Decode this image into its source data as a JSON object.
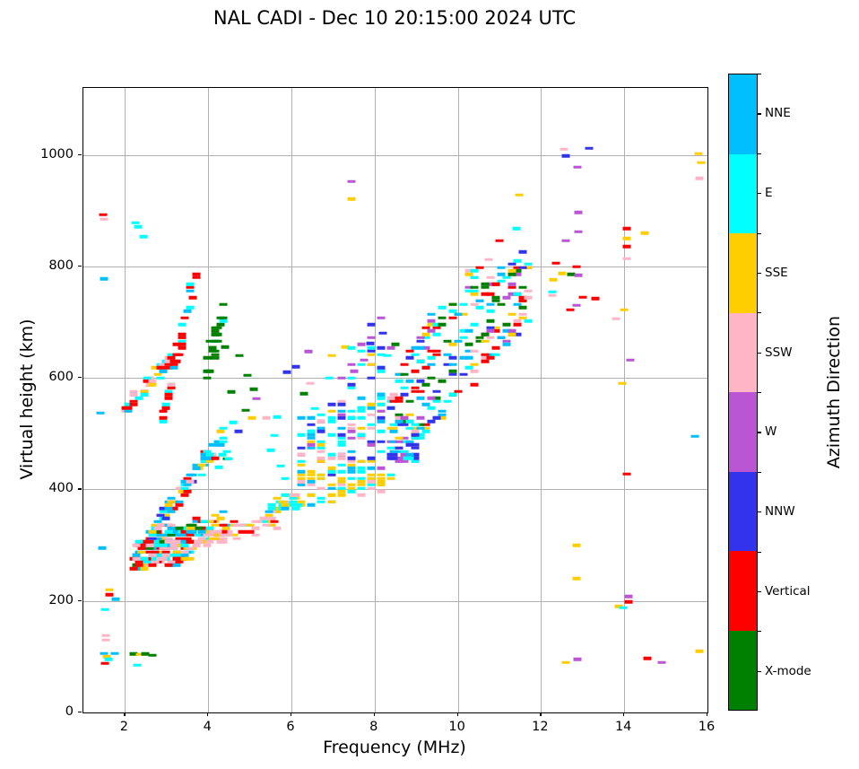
{
  "chart_data": {
    "type": "scatter",
    "title": "NAL CADI - Dec 10 20:15:00 2024 UTC",
    "xlabel": "Frequency (MHz)",
    "ylabel": "Virtual height (km)",
    "xlim": [
      1,
      16
    ],
    "ylim": [
      0,
      1120
    ],
    "x_ticks": [
      2,
      4,
      6,
      8,
      10,
      12,
      14,
      16
    ],
    "y_ticks": [
      0,
      200,
      400,
      600,
      800,
      1000
    ],
    "grid": true,
    "colorbar": {
      "label": "Azimuth Direction",
      "categories": [
        "NNE",
        "E",
        "SSE",
        "SSW",
        "W",
        "NNW",
        "Vertical",
        "X-mode"
      ],
      "colors": [
        "#00BFFF",
        "#00FFFF",
        "#FFCE00",
        "#FFB5C5",
        "#BA55D3",
        "#3333EE",
        "#FF0000",
        "#008000"
      ]
    },
    "points": [
      [
        1.48,
        893,
        6
      ],
      [
        1.5,
        885,
        3
      ],
      [
        1.49,
        778,
        0
      ],
      [
        1.42,
        537,
        0
      ],
      [
        1.45,
        295,
        0
      ],
      [
        2.26,
        878,
        1
      ],
      [
        2.32,
        871,
        1
      ],
      [
        2.44,
        853,
        1
      ],
      [
        1.62,
        220,
        2
      ],
      [
        1.62,
        211,
        6
      ],
      [
        1.78,
        203,
        0
      ],
      [
        1.52,
        185,
        1
      ],
      [
        1.53,
        138,
        3
      ],
      [
        1.53,
        130,
        3
      ],
      [
        1.5,
        106,
        0
      ],
      [
        1.56,
        100,
        2
      ],
      [
        1.6,
        95,
        1
      ],
      [
        1.52,
        88,
        6
      ],
      [
        1.75,
        106,
        0
      ],
      [
        2.2,
        105,
        7
      ],
      [
        2.35,
        104,
        2
      ],
      [
        2.48,
        105,
        7
      ],
      [
        2.65,
        103,
        7
      ],
      [
        2.29,
        85,
        1
      ],
      [
        4.45,
        455,
        7
      ],
      [
        4.3,
        480,
        4
      ],
      [
        4.73,
        504,
        5
      ],
      [
        4.9,
        542,
        7
      ],
      [
        5.05,
        528,
        2
      ],
      [
        5.4,
        528,
        3
      ],
      [
        5.15,
        563,
        4
      ],
      [
        4.4,
        655,
        7
      ],
      [
        4.75,
        640,
        7
      ],
      [
        4.95,
        605,
        7
      ],
      [
        5.1,
        580,
        7
      ],
      [
        4.55,
        575,
        7
      ],
      [
        4.6,
        520,
        1
      ],
      [
        5.6,
        497,
        1
      ],
      [
        5.5,
        470,
        1
      ],
      [
        5.75,
        442,
        1
      ],
      [
        5.85,
        420,
        1
      ],
      [
        5.65,
        530,
        1
      ],
      [
        4.35,
        462,
        1
      ],
      [
        4.45,
        468,
        1
      ],
      [
        4.5,
        455,
        1
      ],
      [
        4.25,
        440,
        1
      ],
      [
        5.9,
        610,
        5
      ],
      [
        6.4,
        647,
        4
      ],
      [
        6.97,
        640,
        2
      ],
      [
        6.1,
        620,
        5
      ],
      [
        6.45,
        590,
        3
      ],
      [
        6.3,
        572,
        7
      ],
      [
        6.55,
        545,
        1
      ],
      [
        6.9,
        600,
        1
      ],
      [
        7.5,
        612,
        4
      ],
      [
        7.3,
        655,
        2
      ],
      [
        7.45,
        952,
        4
      ],
      [
        7.45,
        921,
        2
      ],
      [
        7.9,
        662,
        5
      ],
      [
        7.75,
        632,
        4
      ],
      [
        8.2,
        680,
        5
      ],
      [
        8.5,
        660,
        7
      ],
      [
        8.3,
        640,
        1
      ],
      [
        11.48,
        928,
        2
      ],
      [
        11.4,
        868,
        1
      ],
      [
        11.0,
        846,
        6
      ],
      [
        11.55,
        826,
        5
      ],
      [
        10.75,
        812,
        3
      ],
      [
        12.55,
        1010,
        3
      ],
      [
        12.6,
        998,
        5
      ],
      [
        13.15,
        1012,
        5
      ],
      [
        12.88,
        978,
        4
      ],
      [
        15.78,
        1002,
        2
      ],
      [
        15.85,
        986,
        2
      ],
      [
        15.8,
        958,
        3
      ],
      [
        12.9,
        897,
        4
      ],
      [
        12.9,
        862,
        4
      ],
      [
        12.6,
        846,
        4
      ],
      [
        14.05,
        868,
        6
      ],
      [
        14.5,
        860,
        2
      ],
      [
        14.05,
        850,
        2
      ],
      [
        14.05,
        836,
        6
      ],
      [
        14.05,
        814,
        3
      ],
      [
        12.35,
        806,
        6
      ],
      [
        12.85,
        799,
        6
      ],
      [
        12.5,
        787,
        2
      ],
      [
        12.72,
        786,
        7
      ],
      [
        12.9,
        784,
        4
      ],
      [
        12.3,
        776,
        2
      ],
      [
        12.28,
        754,
        1
      ],
      [
        12.28,
        748,
        3
      ],
      [
        12.85,
        730,
        4
      ],
      [
        12.7,
        722,
        6
      ],
      [
        13.0,
        745,
        6
      ],
      [
        13.3,
        742,
        6
      ],
      [
        13.8,
        706,
        3
      ],
      [
        14.0,
        722,
        2
      ],
      [
        14.15,
        632,
        4
      ],
      [
        13.95,
        590,
        2
      ],
      [
        14.05,
        428,
        6
      ],
      [
        15.7,
        495,
        0
      ],
      [
        12.85,
        300,
        2
      ],
      [
        12.85,
        240,
        2
      ],
      [
        14.1,
        208,
        4
      ],
      [
        14.1,
        198,
        6
      ],
      [
        13.86,
        190,
        2
      ],
      [
        13.97,
        188,
        1
      ],
      [
        12.6,
        90,
        2
      ],
      [
        12.88,
        95,
        4
      ],
      [
        14.55,
        97,
        6
      ],
      [
        14.9,
        90,
        4
      ],
      [
        15.8,
        110,
        2
      ]
    ],
    "clusters": [
      {
        "f0": 2.2,
        "f1": 3.6,
        "b0": 256,
        "b1": 268,
        "t0": 310,
        "t1": 330,
        "n": 140,
        "seed": 11,
        "qx": 0.065,
        "mix": [
          [
            6,
            28
          ],
          [
            0,
            20
          ],
          [
            1,
            15
          ],
          [
            3,
            18
          ],
          [
            2,
            12
          ],
          [
            7,
            7
          ]
        ]
      },
      {
        "f0": 2.6,
        "f1": 4.6,
        "b0": 295,
        "b1": 315,
        "t0": 330,
        "t1": 365,
        "n": 85,
        "seed": 22,
        "qx": 0.065,
        "mix": [
          [
            0,
            25
          ],
          [
            6,
            20
          ],
          [
            1,
            15
          ],
          [
            7,
            13
          ],
          [
            2,
            15
          ],
          [
            3,
            12
          ]
        ]
      },
      {
        "f0": 2.45,
        "f1": 5.65,
        "b0": 266,
        "b1": 330,
        "t0": 292,
        "t1": 356,
        "n": 75,
        "seed": 33,
        "qx": 0.065,
        "mix": [
          [
            3,
            62
          ],
          [
            2,
            18
          ],
          [
            1,
            12
          ],
          [
            6,
            8
          ]
        ]
      },
      {
        "f0": 2.5,
        "f1": 4.35,
        "b0": 292,
        "b1": 480,
        "t0": 318,
        "t1": 515,
        "n": 95,
        "seed": 44,
        "qx": 0.065,
        "mix": [
          [
            0,
            42
          ],
          [
            1,
            20
          ],
          [
            6,
            14
          ],
          [
            2,
            10
          ],
          [
            3,
            8
          ],
          [
            5,
            6
          ]
        ]
      },
      {
        "f0": 1.95,
        "f1": 3.4,
        "b0": 528,
        "b1": 648,
        "t0": 552,
        "t1": 672,
        "n": 50,
        "seed": 55,
        "qx": 0.065,
        "mix": [
          [
            6,
            38
          ],
          [
            1,
            20
          ],
          [
            0,
            16
          ],
          [
            3,
            16
          ],
          [
            2,
            10
          ]
        ]
      },
      {
        "f0": 2.9,
        "f1": 3.7,
        "b0": 512,
        "b1": 765,
        "t0": 548,
        "t1": 800,
        "n": 40,
        "seed": 66,
        "qx": 0.065,
        "mix": [
          [
            6,
            55
          ],
          [
            1,
            20
          ],
          [
            0,
            15
          ],
          [
            3,
            10
          ]
        ]
      },
      {
        "f0": 3.95,
        "f1": 4.4,
        "b0": 585,
        "b1": 700,
        "t0": 650,
        "t1": 760,
        "n": 26,
        "seed": 77,
        "qx": 0.065,
        "mix": [
          [
            7,
            85
          ],
          [
            1,
            15
          ]
        ]
      },
      {
        "f0": 5.45,
        "f1": 6.25,
        "b0": 348,
        "b1": 372,
        "t0": 378,
        "t1": 408,
        "n": 30,
        "seed": 88,
        "qx": 0.065,
        "mix": [
          [
            2,
            35
          ],
          [
            3,
            20
          ],
          [
            0,
            20
          ],
          [
            1,
            25
          ]
        ]
      },
      {
        "f0": 6.2,
        "f1": 8.35,
        "b0": 368,
        "b1": 400,
        "t0": 432,
        "t1": 455,
        "n": 90,
        "seed": 99,
        "qx": 0.24,
        "mix": [
          [
            2,
            50
          ],
          [
            1,
            20
          ],
          [
            3,
            12
          ],
          [
            0,
            8
          ],
          [
            5,
            5
          ],
          [
            4,
            5
          ]
        ]
      },
      {
        "f0": 6.25,
        "f1": 8.35,
        "b0": 432,
        "b1": 455,
        "t0": 548,
        "t1": 572,
        "n": 110,
        "seed": 111,
        "qx": 0.24,
        "mix": [
          [
            1,
            22
          ],
          [
            5,
            20
          ],
          [
            4,
            15
          ],
          [
            2,
            15
          ],
          [
            3,
            13
          ],
          [
            0,
            15
          ]
        ]
      },
      {
        "f0": 7.3,
        "f1": 8.35,
        "b0": 575,
        "b1": 600,
        "t0": 690,
        "t1": 712,
        "n": 25,
        "seed": 122,
        "qx": 0.24,
        "mix": [
          [
            5,
            30
          ],
          [
            4,
            25
          ],
          [
            2,
            20
          ],
          [
            1,
            25
          ]
        ]
      },
      {
        "f0": 8.42,
        "f1": 10.1,
        "b0": 440,
        "b1": 560,
        "t0": 615,
        "t1": 795,
        "n": 120,
        "seed": 133,
        "qx": 0.13,
        "mix": [
          [
            1,
            18
          ],
          [
            0,
            12
          ],
          [
            2,
            12
          ],
          [
            7,
            16
          ],
          [
            6,
            14
          ],
          [
            4,
            10
          ],
          [
            5,
            10
          ],
          [
            3,
            8
          ]
        ]
      },
      {
        "f0": 10.1,
        "f1": 11.75,
        "b0": 560,
        "b1": 700,
        "t0": 795,
        "t1": 812,
        "n": 110,
        "seed": 144,
        "qx": 0.13,
        "mix": [
          [
            7,
            18
          ],
          [
            6,
            18
          ],
          [
            1,
            15
          ],
          [
            2,
            13
          ],
          [
            0,
            10
          ],
          [
            4,
            8
          ],
          [
            5,
            8
          ],
          [
            3,
            10
          ]
        ]
      },
      {
        "f0": 8.42,
        "f1": 9.1,
        "b0": 425,
        "b1": 455,
        "t0": 525,
        "t1": 545,
        "n": 35,
        "seed": 155,
        "qx": 0.13,
        "mix": [
          [
            4,
            30
          ],
          [
            5,
            25
          ],
          [
            0,
            25
          ],
          [
            1,
            20
          ]
        ]
      }
    ]
  }
}
